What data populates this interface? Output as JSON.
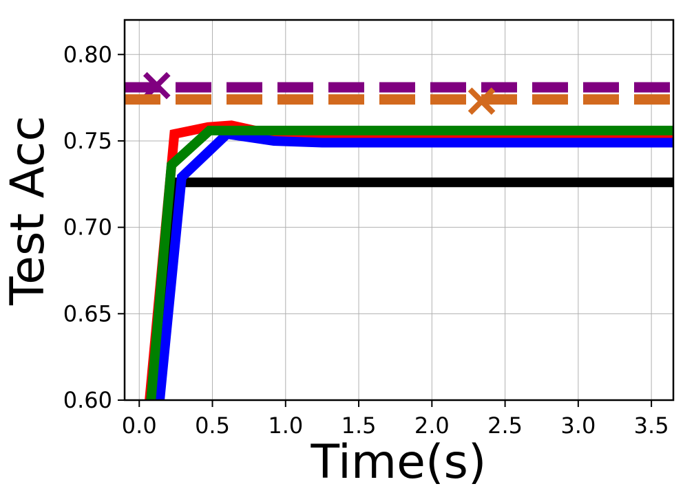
{
  "chart_data": {
    "type": "line",
    "title": "",
    "xlabel": "Time(s)",
    "ylabel": "Test Acc",
    "xlim": [
      -0.1,
      3.65
    ],
    "ylim": [
      0.6,
      0.82
    ],
    "xticks": [
      0.0,
      0.5,
      1.0,
      1.5,
      2.0,
      2.5,
      3.0,
      3.5
    ],
    "xtick_labels": [
      "0.0",
      "0.5",
      "1.0",
      "1.5",
      "2.0",
      "2.5",
      "3.0",
      "3.5"
    ],
    "yticks": [
      0.6,
      0.65,
      0.7,
      0.75,
      0.8
    ],
    "ytick_labels": [
      "0.60",
      "0.65",
      "0.70",
      "0.75",
      "0.80"
    ],
    "grid": true,
    "series": [
      {
        "color": "#ff0000",
        "style": "solid",
        "points": [
          [
            0.07,
            0.6
          ],
          [
            0.24,
            0.754
          ],
          [
            0.47,
            0.758
          ],
          [
            0.63,
            0.759
          ],
          [
            0.9,
            0.754
          ],
          [
            3.65,
            0.754
          ]
        ]
      },
      {
        "color": "#000000",
        "style": "solid",
        "points": [
          [
            0.08,
            0.6
          ],
          [
            0.23,
            0.726
          ],
          [
            0.45,
            0.726
          ],
          [
            3.65,
            0.726
          ]
        ]
      },
      {
        "color": "#0000ff",
        "style": "solid",
        "points": [
          [
            0.14,
            0.6
          ],
          [
            0.29,
            0.729
          ],
          [
            0.6,
            0.754
          ],
          [
            0.92,
            0.75
          ],
          [
            1.25,
            0.749
          ],
          [
            3.65,
            0.749
          ]
        ]
      },
      {
        "color": "#008000",
        "style": "solid",
        "points": [
          [
            0.08,
            0.6
          ],
          [
            0.22,
            0.736
          ],
          [
            0.48,
            0.756
          ],
          [
            3.65,
            0.756
          ]
        ]
      },
      {
        "color": "#800080",
        "style": "dashed",
        "points": [
          [
            -0.1,
            0.781
          ],
          [
            3.65,
            0.781
          ]
        ],
        "marker": {
          "shape": "x",
          "x": 0.12,
          "y": 0.782
        }
      },
      {
        "color": "#d2691e",
        "style": "dashed",
        "points": [
          [
            -0.1,
            0.774
          ],
          [
            3.65,
            0.774
          ]
        ],
        "marker": {
          "shape": "x",
          "x": 2.34,
          "y": 0.773
        }
      }
    ]
  }
}
